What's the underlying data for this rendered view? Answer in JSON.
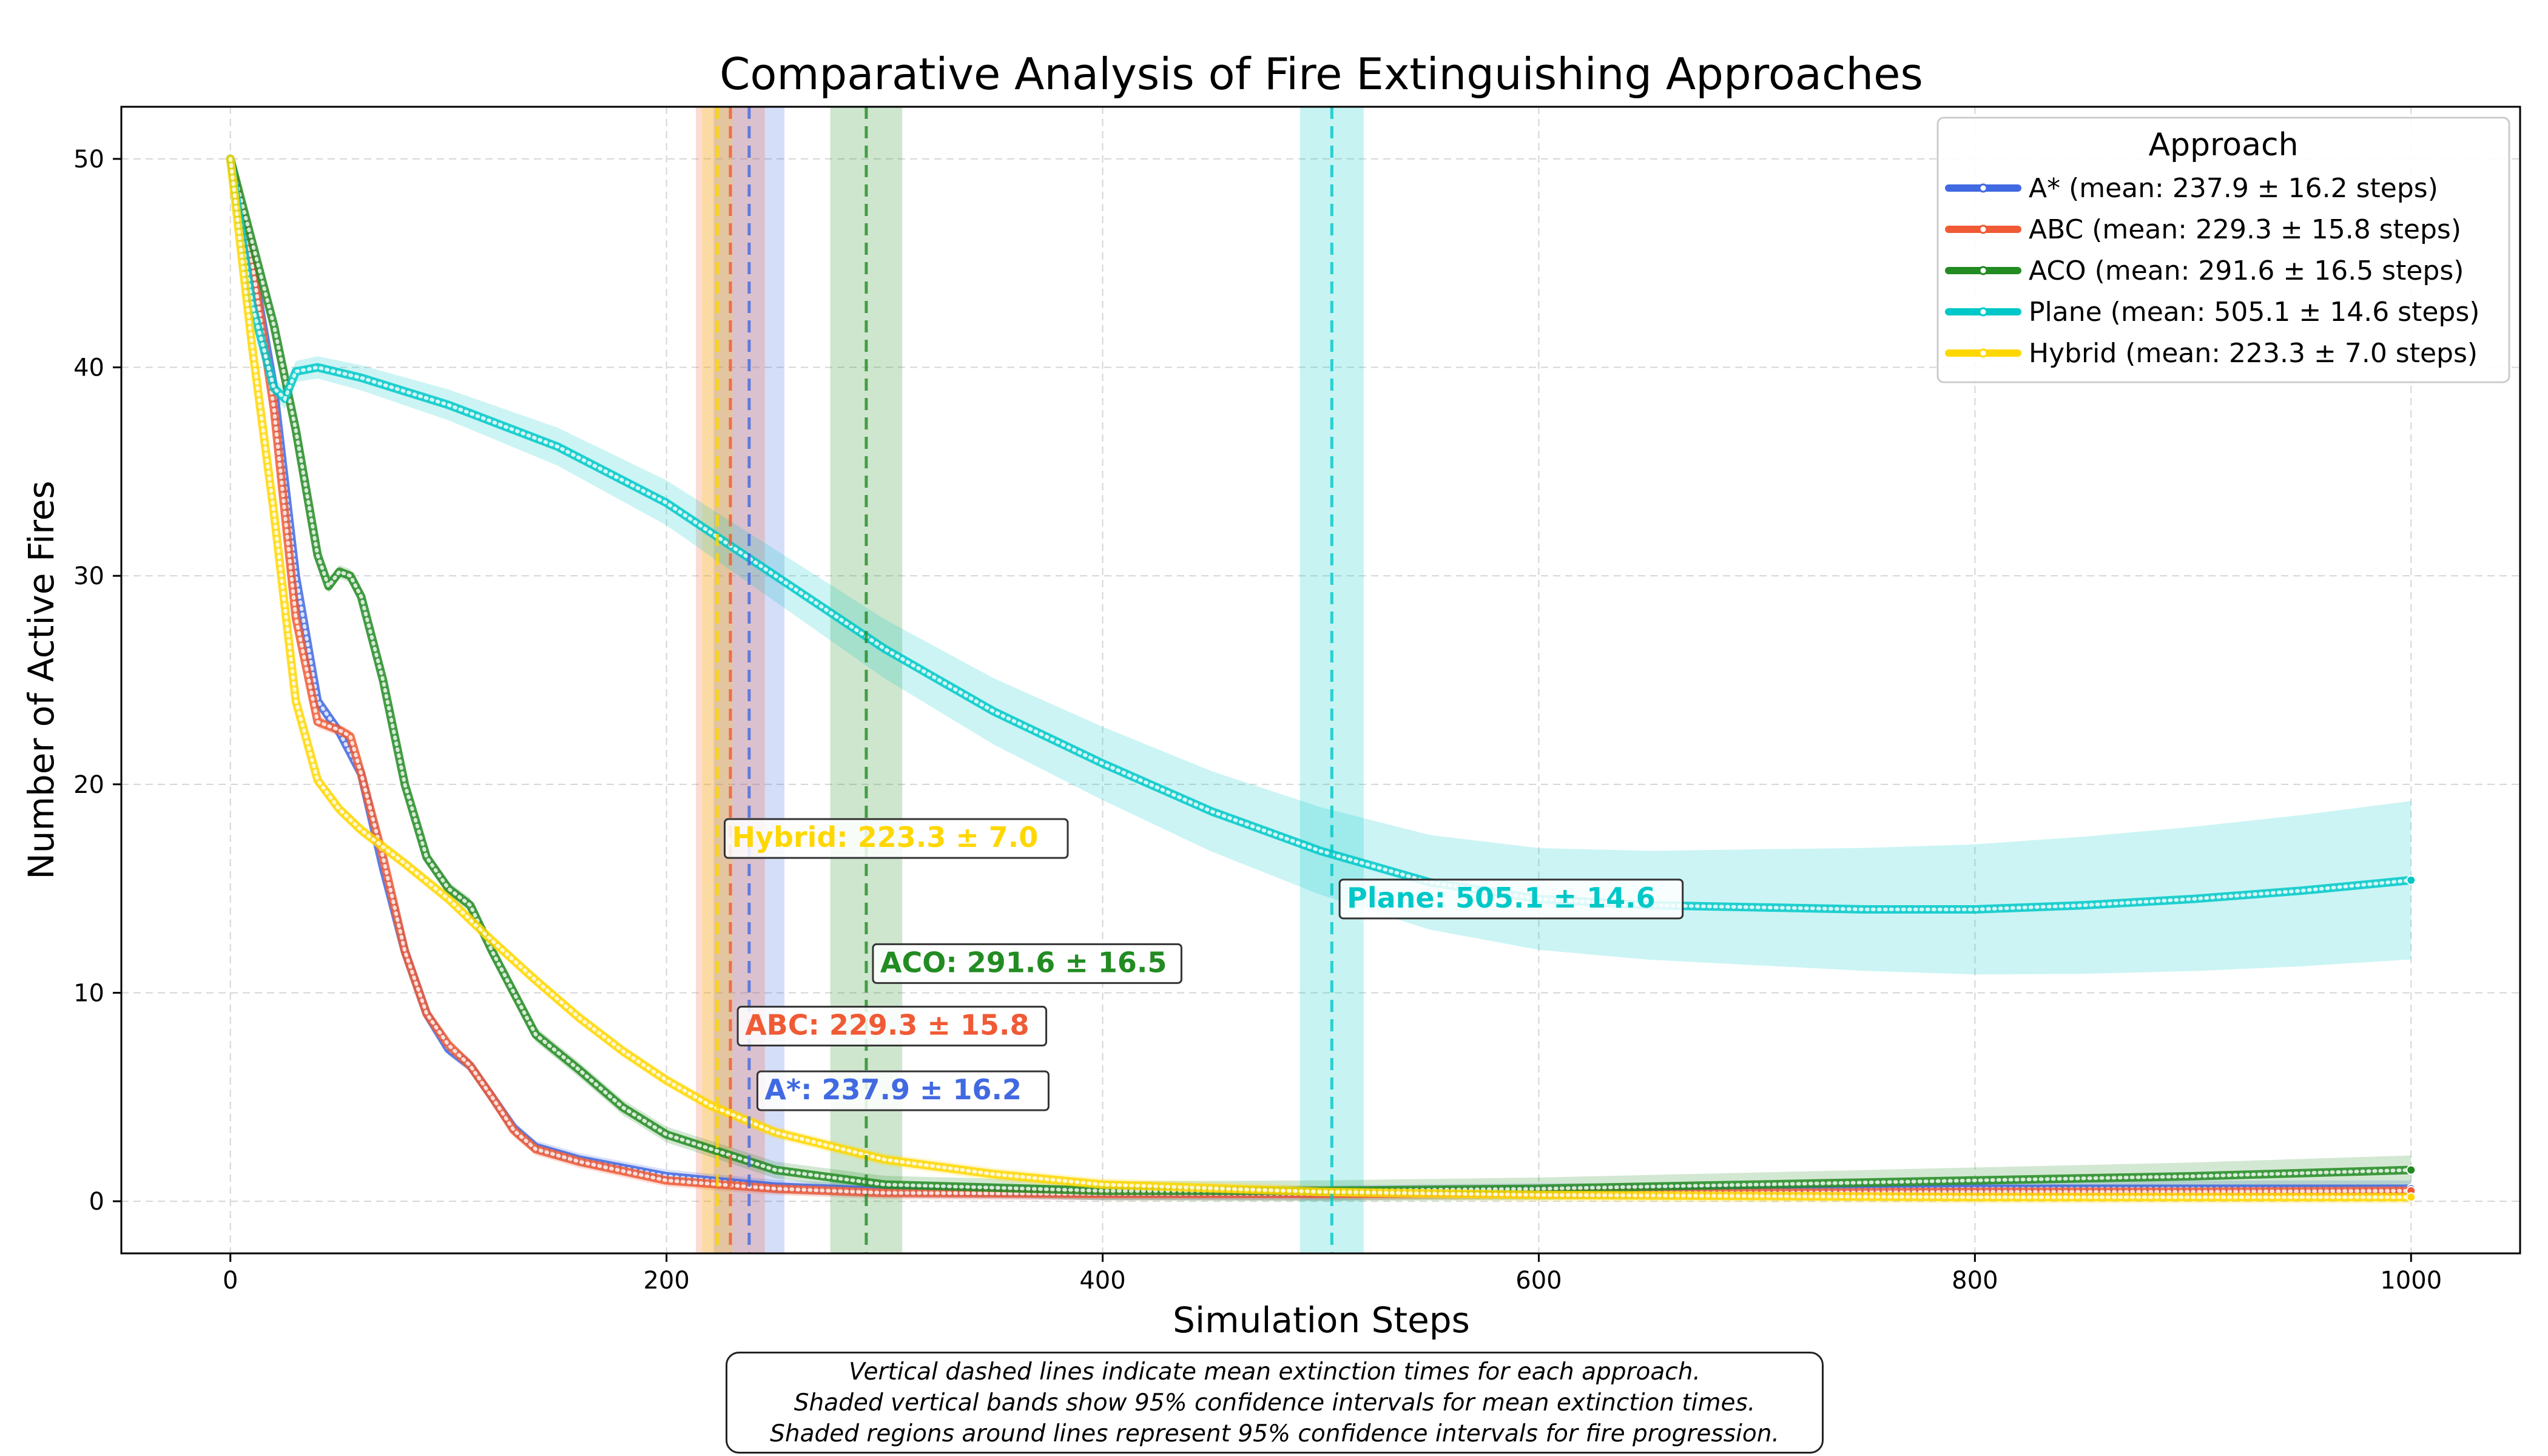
{
  "chart_data": {
    "type": "line",
    "title": "Comparative Analysis of Fire Extinguishing Approaches",
    "xlabel": "Simulation Steps",
    "ylabel": "Number of Active Fires",
    "xlim": [
      -50,
      1050
    ],
    "ylim": [
      -2.5,
      52.5
    ],
    "xticks": [
      0,
      200,
      400,
      600,
      800,
      1000
    ],
    "yticks": [
      0,
      10,
      20,
      30,
      40,
      50
    ],
    "grid": true,
    "legend": {
      "title": "Approach",
      "placement": "upper right"
    },
    "series": [
      {
        "name": "A* (mean: 237.9 ± 16.2 steps)",
        "short": "A*",
        "color": "#4169e1",
        "mean_time": 237.9,
        "ci": [
          221.7,
          254.1
        ],
        "annotation": "A*: 237.9 ± 16.2",
        "annotation_pos": [
          240,
          5.3
        ],
        "points": [
          [
            0,
            50
          ],
          [
            10,
            45
          ],
          [
            20,
            39
          ],
          [
            30,
            30
          ],
          [
            40,
            24
          ],
          [
            50,
            22.5
          ],
          [
            60,
            20.5
          ],
          [
            70,
            16
          ],
          [
            80,
            12
          ],
          [
            90,
            9
          ],
          [
            100,
            7.3
          ],
          [
            110,
            6.5
          ],
          [
            120,
            5
          ],
          [
            130,
            3.5
          ],
          [
            140,
            2.6
          ],
          [
            160,
            2
          ],
          [
            200,
            1.2
          ],
          [
            250,
            0.7
          ],
          [
            300,
            0.5
          ],
          [
            400,
            0.4
          ],
          [
            500,
            0.4
          ],
          [
            600,
            0.5
          ],
          [
            700,
            0.5
          ],
          [
            800,
            0.6
          ],
          [
            900,
            0.6
          ],
          [
            1000,
            0.6
          ]
        ],
        "band": [
          0.3,
          0.4
        ]
      },
      {
        "name": "ABC (mean: 229.3 ± 15.8 steps)",
        "short": "ABC",
        "color": "#f05a35",
        "mean_time": 229.3,
        "ci": [
          213.5,
          245.1
        ],
        "annotation": "ABC: 229.3 ± 15.8",
        "annotation_pos": [
          231,
          8.4
        ],
        "points": [
          [
            0,
            50
          ],
          [
            10,
            45
          ],
          [
            20,
            38
          ],
          [
            30,
            28
          ],
          [
            40,
            23
          ],
          [
            50,
            22.6
          ],
          [
            55,
            22.3
          ],
          [
            60,
            20.5
          ],
          [
            70,
            16.5
          ],
          [
            80,
            12
          ],
          [
            90,
            9
          ],
          [
            100,
            7.5
          ],
          [
            110,
            6.5
          ],
          [
            120,
            5
          ],
          [
            130,
            3.4
          ],
          [
            140,
            2.5
          ],
          [
            160,
            1.9
          ],
          [
            200,
            1
          ],
          [
            250,
            0.6
          ],
          [
            300,
            0.4
          ],
          [
            400,
            0.35
          ],
          [
            500,
            0.35
          ],
          [
            600,
            0.4
          ],
          [
            700,
            0.4
          ],
          [
            800,
            0.45
          ],
          [
            900,
            0.45
          ],
          [
            1000,
            0.5
          ]
        ],
        "band": [
          0.3,
          0.3
        ]
      },
      {
        "name": "ACO (mean: 291.6 ± 16.5 steps)",
        "short": "ACO",
        "color": "#228b22",
        "mean_time": 291.6,
        "ci": [
          275.1,
          308.1
        ],
        "annotation": "ACO: 291.6 ± 16.5",
        "annotation_pos": [
          293,
          11.4
        ],
        "points": [
          [
            0,
            50
          ],
          [
            10,
            46
          ],
          [
            20,
            42
          ],
          [
            30,
            37
          ],
          [
            40,
            31
          ],
          [
            45,
            29.5
          ],
          [
            50,
            30.2
          ],
          [
            55,
            30
          ],
          [
            60,
            29
          ],
          [
            70,
            25
          ],
          [
            80,
            20
          ],
          [
            90,
            16.5
          ],
          [
            100,
            15
          ],
          [
            110,
            14.2
          ],
          [
            120,
            12
          ],
          [
            130,
            10
          ],
          [
            140,
            8
          ],
          [
            160,
            6.3
          ],
          [
            180,
            4.5
          ],
          [
            200,
            3.2
          ],
          [
            250,
            1.5
          ],
          [
            300,
            0.8
          ],
          [
            400,
            0.5
          ],
          [
            500,
            0.5
          ],
          [
            600,
            0.6
          ],
          [
            700,
            0.8
          ],
          [
            800,
            1
          ],
          [
            900,
            1.2
          ],
          [
            1000,
            1.5
          ]
        ],
        "band": [
          0.3,
          0.7
        ]
      },
      {
        "name": "Plane (mean: 505.1 ± 14.6 steps)",
        "short": "Plane",
        "color": "#00c8c8",
        "mean_time": 505.1,
        "ci": [
          490.5,
          519.7
        ],
        "annotation": "Plane: 505.1 ± 14.6",
        "annotation_pos": [
          507,
          14.5
        ],
        "points": [
          [
            0,
            50
          ],
          [
            10,
            43
          ],
          [
            20,
            39
          ],
          [
            25,
            38.5
          ],
          [
            30,
            39.8
          ],
          [
            40,
            40
          ],
          [
            60,
            39.5
          ],
          [
            100,
            38.2
          ],
          [
            150,
            36.2
          ],
          [
            200,
            33.5
          ],
          [
            250,
            30
          ],
          [
            300,
            26.5
          ],
          [
            350,
            23.5
          ],
          [
            400,
            21
          ],
          [
            450,
            18.7
          ],
          [
            500,
            16.8
          ],
          [
            550,
            15.3
          ],
          [
            600,
            14.5
          ],
          [
            650,
            14.2
          ],
          [
            700,
            14.1
          ],
          [
            750,
            14
          ],
          [
            800,
            14
          ],
          [
            850,
            14.2
          ],
          [
            900,
            14.5
          ],
          [
            950,
            14.9
          ],
          [
            1000,
            15.4
          ]
        ],
        "band": [
          0.4,
          3.8
        ]
      },
      {
        "name": "Hybrid (mean: 223.3 ± 7.0 steps)",
        "short": "Hybrid",
        "color": "#ffd700",
        "mean_time": 223.3,
        "ci": [
          216.3,
          230.3
        ],
        "annotation": "Hybrid: 223.3 ± 7.0",
        "annotation_pos": [
          225,
          17.4
        ],
        "points": [
          [
            0,
            50
          ],
          [
            10,
            41
          ],
          [
            20,
            33
          ],
          [
            30,
            24
          ],
          [
            40,
            20.2
          ],
          [
            50,
            18.8
          ],
          [
            60,
            17.8
          ],
          [
            80,
            16.2
          ],
          [
            100,
            14.5
          ],
          [
            120,
            12.5
          ],
          [
            140,
            10.6
          ],
          [
            160,
            8.8
          ],
          [
            180,
            7.2
          ],
          [
            200,
            5.8
          ],
          [
            220,
            4.6
          ],
          [
            250,
            3.3
          ],
          [
            300,
            2
          ],
          [
            350,
            1.3
          ],
          [
            400,
            0.8
          ],
          [
            500,
            0.45
          ],
          [
            600,
            0.3
          ],
          [
            700,
            0.25
          ],
          [
            800,
            0.2
          ],
          [
            900,
            0.2
          ],
          [
            1000,
            0.2
          ]
        ],
        "band": [
          0.3,
          0.3
        ]
      }
    ],
    "footnote": [
      "Vertical dashed lines indicate mean extinction times for each approach.",
      "Shaded vertical bands show 95% confidence intervals for mean extinction times.",
      "Shaded regions around lines represent 95% confidence intervals for fire progression."
    ]
  }
}
